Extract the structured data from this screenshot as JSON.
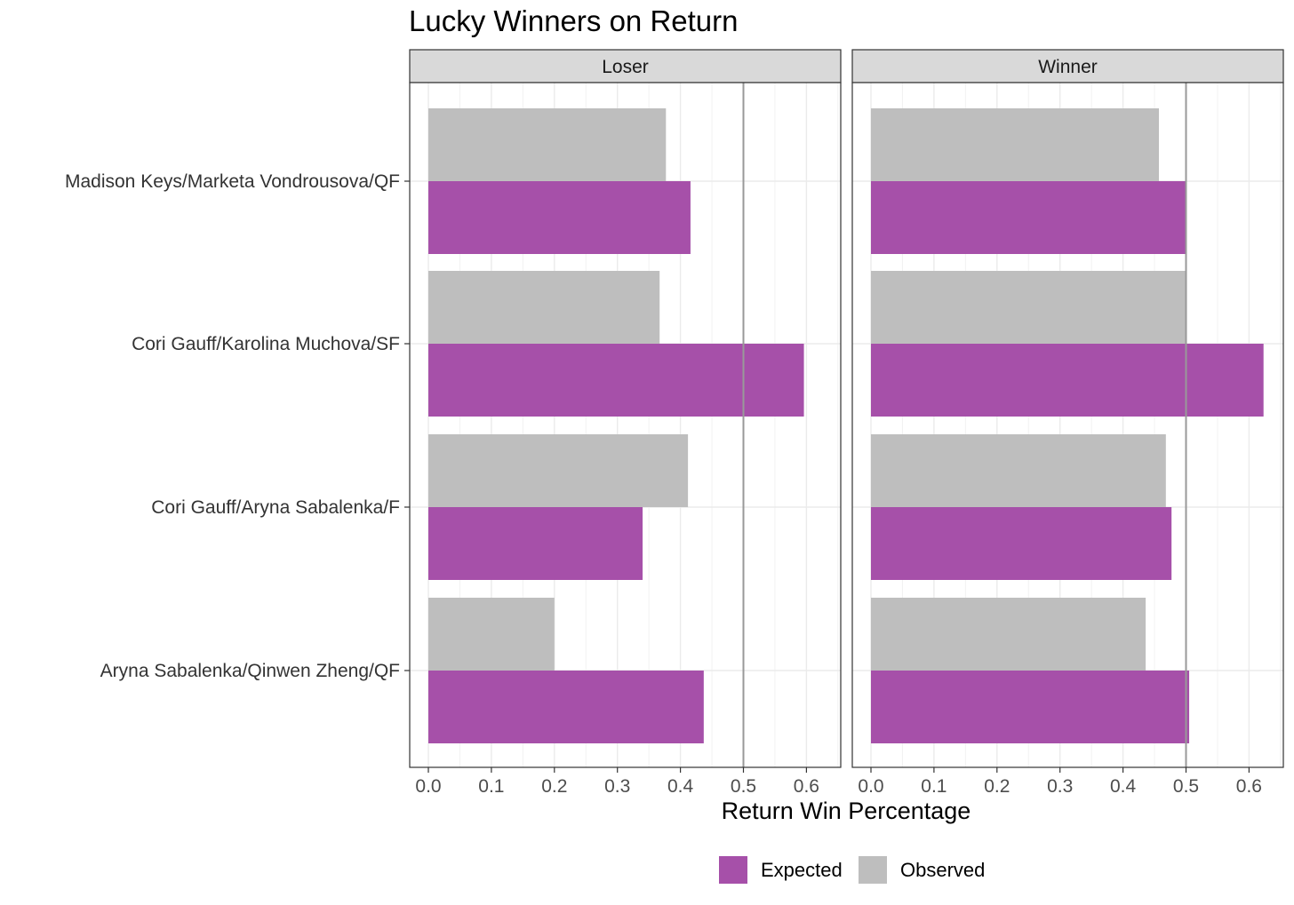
{
  "chart_data": {
    "type": "bar",
    "orientation": "horizontal",
    "title": "Lucky Winners on Return",
    "xlabel": "Return Win Percentage",
    "ylabel": "",
    "xlim": [
      0,
      0.65
    ],
    "x_ticks": [
      "0.0",
      "0.1",
      "0.2",
      "0.3",
      "0.4",
      "0.5",
      "0.6"
    ],
    "x_tick_values": [
      0.0,
      0.1,
      0.2,
      0.3,
      0.4,
      0.5,
      0.6
    ],
    "reference_line": 0.5,
    "grid": true,
    "legend_position": "bottom",
    "categories": [
      "Madison Keys/Marketa Vondrousova/QF",
      "Cori Gauff/Karolina Muchova/SF",
      "Cori Gauff/Aryna Sabalenka/F",
      "Aryna Sabalenka/Qinwen Zheng/QF"
    ],
    "legend": [
      {
        "name": "Expected",
        "color": "#A650A9"
      },
      {
        "name": "Observed",
        "color": "#BEBEBE"
      }
    ],
    "panels": [
      {
        "label": "Loser",
        "series": [
          {
            "name": "Observed",
            "color": "#BEBEBE",
            "values": [
              0.377,
              0.367,
              0.412,
              0.2
            ]
          },
          {
            "name": "Expected",
            "color": "#A650A9",
            "values": [
              0.416,
              0.596,
              0.34,
              0.437
            ]
          }
        ]
      },
      {
        "label": "Winner",
        "series": [
          {
            "name": "Observed",
            "color": "#BEBEBE",
            "values": [
              0.457,
              0.5,
              0.468,
              0.436
            ]
          },
          {
            "name": "Expected",
            "color": "#A650A9",
            "values": [
              0.499,
              0.623,
              0.477,
              0.505
            ]
          }
        ]
      }
    ]
  }
}
